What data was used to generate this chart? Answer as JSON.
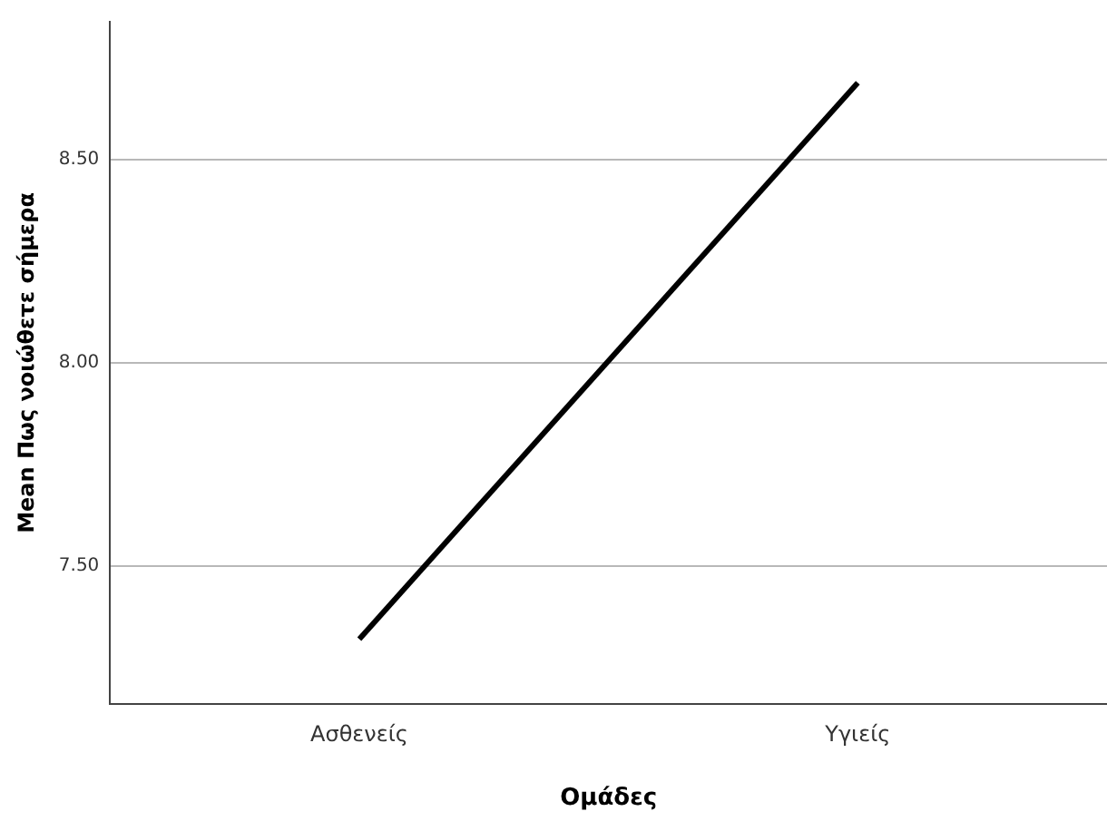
{
  "chart_data": {
    "type": "line",
    "xlabel": "Ομάδες",
    "ylabel": "Mean Πως νοιώθετε σήμερα",
    "categories": [
      "Ασθενείς",
      "Υγιείς"
    ],
    "series": [
      {
        "color": "#000000",
        "values": [
          7.32,
          8.69
        ]
      }
    ],
    "ylim": [
      7.16,
      8.84
    ],
    "yticks": [
      {
        "value": 7.5,
        "label": "7.50"
      },
      {
        "value": 8,
        "label": "8.00"
      },
      {
        "value": 8.5,
        "label": "8.50"
      }
    ],
    "grid": "y",
    "legend": false,
    "marker": "none",
    "line_style": "solid"
  }
}
